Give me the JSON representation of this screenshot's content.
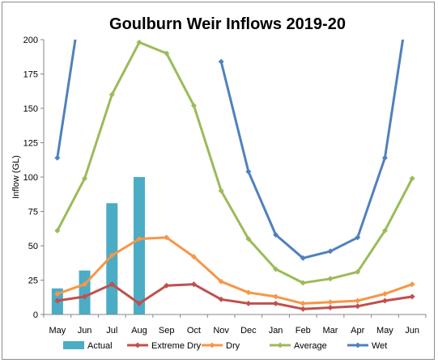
{
  "chart_data": {
    "type": "line",
    "title": "Goulburn Weir Inflows 2019-20",
    "xlabel": "",
    "ylabel": "Inflow (GL)",
    "ylim": [
      0,
      200
    ],
    "yticks": [
      0,
      25,
      50,
      75,
      100,
      125,
      150,
      175,
      200
    ],
    "ytick_labels": [
      "0",
      "25",
      "50",
      "75",
      "100",
      "125",
      "150",
      "175",
      "200"
    ],
    "categories": [
      "May",
      "Jun",
      "Jul",
      "Aug",
      "Sep",
      "Oct",
      "Nov",
      "Dec",
      "Jan",
      "Feb",
      "Mar",
      "Apr",
      "May",
      "Jun"
    ],
    "grid": false,
    "legend_position": "bottom",
    "bar_series": {
      "name": "Actual",
      "color": "#4bacc6",
      "values": [
        19,
        32,
        81,
        100,
        null,
        null,
        null,
        null,
        null,
        null,
        null,
        null,
        null,
        null
      ]
    },
    "series": [
      {
        "name": "Extreme Dry",
        "color": "#c0504d",
        "values": [
          10,
          13,
          22,
          8,
          21,
          22,
          11,
          8,
          8,
          4,
          5,
          6,
          10,
          13
        ]
      },
      {
        "name": "Dry",
        "color": "#f79646",
        "values": [
          15,
          22,
          43,
          55,
          56,
          42,
          24,
          16,
          13,
          8,
          9,
          10,
          15,
          22
        ]
      },
      {
        "name": "Average",
        "color": "#9bbb59",
        "values": [
          61,
          99,
          160,
          198,
          190,
          152,
          90,
          55,
          33,
          23,
          26,
          31,
          61,
          99
        ]
      },
      {
        "name": "Wet",
        "color": "#4f81bd",
        "values": [
          114,
          245,
          null,
          null,
          null,
          null,
          184,
          104,
          58,
          41,
          46,
          56,
          114,
          245
        ]
      }
    ]
  }
}
